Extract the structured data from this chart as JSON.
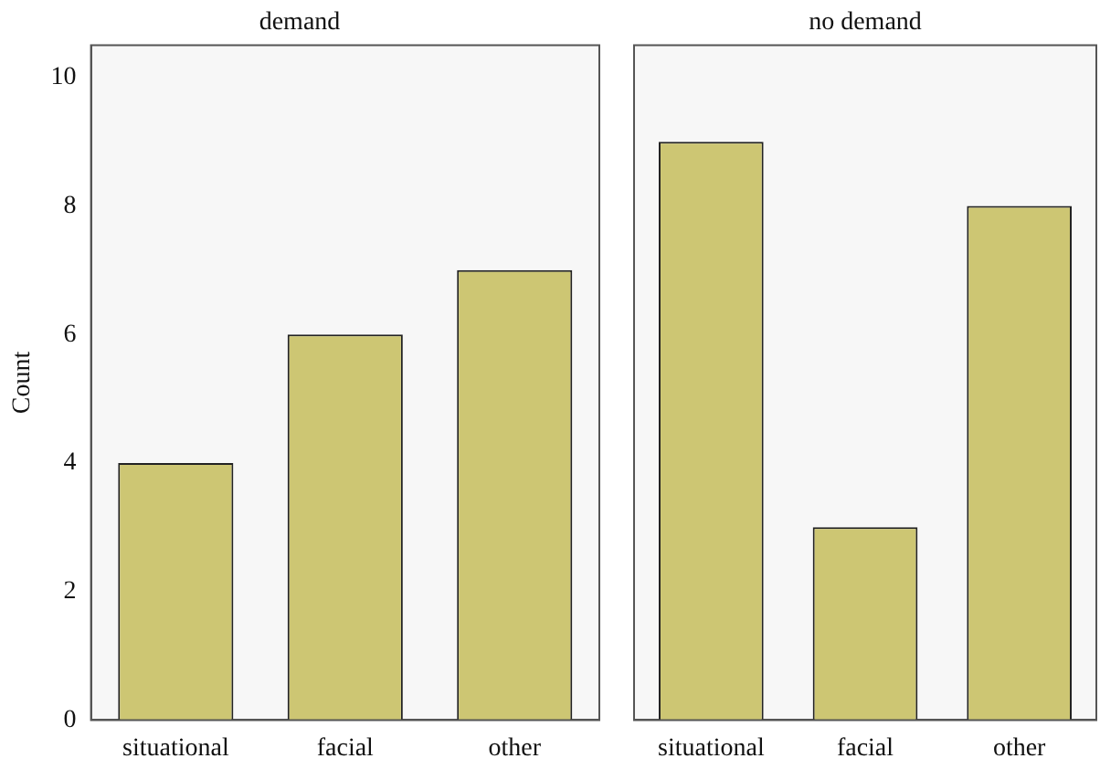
{
  "chart_data": [
    {
      "type": "bar",
      "title": "demand",
      "ylabel": "Count",
      "categories": [
        "situational",
        "facial",
        "other"
      ],
      "values": [
        4,
        6,
        7
      ],
      "color": "#cdc673",
      "ylim": [
        0,
        10.5
      ],
      "yticks": [
        0,
        2,
        4,
        6,
        8,
        10
      ],
      "grid": false,
      "legend": false
    },
    {
      "type": "bar",
      "title": "no demand",
      "categories": [
        "situational",
        "facial",
        "other"
      ],
      "values": [
        9,
        3,
        8
      ],
      "color": "#cdc673",
      "ylim": [
        0,
        10.5
      ],
      "yticks": [
        0,
        2,
        4,
        6,
        8,
        10
      ],
      "grid": false,
      "legend": false,
      "tick_labels": "x"
    }
  ]
}
